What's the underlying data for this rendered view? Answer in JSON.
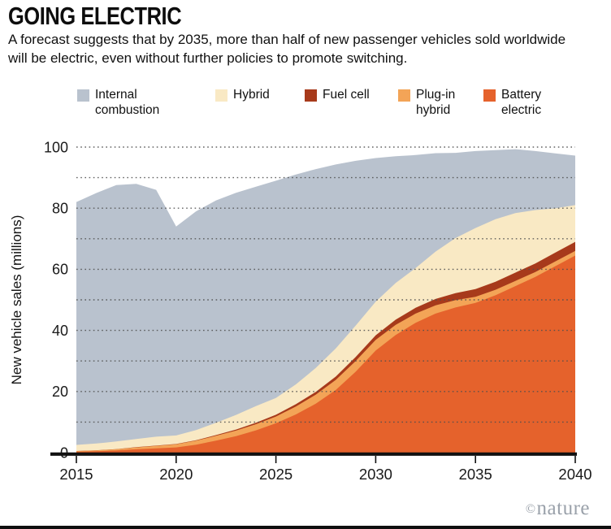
{
  "title": "GOING ELECTRIC",
  "subtitle": "A forecast suggests that by 2035, more than half of new passenger vehicles sold worldwide will be electric, even without further policies to promote switching.",
  "credit": {
    "symbol": "©",
    "name": "nature"
  },
  "legend": [
    {
      "label": "Internal combustion",
      "color": "#b9c2ce"
    },
    {
      "label": "Hybrid",
      "color": "#f9e9c4"
    },
    {
      "label": "Fuel cell",
      "color": "#a73a1b"
    },
    {
      "label": "Plug-in hybrid",
      "color": "#f3a457"
    },
    {
      "label": "Battery electric",
      "color": "#e5622c"
    }
  ],
  "chart_data": {
    "type": "area",
    "stacked": true,
    "title": "GOING ELECTRIC",
    "xlabel": "",
    "ylabel": "New vehicle sales (millions)",
    "x": [
      2015,
      2016,
      2017,
      2018,
      2019,
      2020,
      2021,
      2022,
      2023,
      2024,
      2025,
      2026,
      2027,
      2028,
      2029,
      2030,
      2031,
      2032,
      2033,
      2034,
      2035,
      2036,
      2037,
      2038,
      2039,
      2040
    ],
    "series": [
      {
        "name": "Battery electric",
        "color": "#e5622c",
        "values": [
          0.3,
          0.45,
          0.7,
          1.1,
          1.4,
          1.7,
          2.6,
          3.9,
          5.4,
          7.3,
          9.6,
          12.5,
          16,
          20.5,
          26.5,
          33.4,
          38.5,
          42.5,
          45.5,
          47.5,
          49,
          51.5,
          54.5,
          57.5,
          61,
          64.5
        ]
      },
      {
        "name": "Plug-in hybrid",
        "color": "#f3a457",
        "values": [
          0.2,
          0.3,
          0.4,
          0.6,
          0.8,
          1,
          1.3,
          1.6,
          1.8,
          2,
          2.2,
          2.6,
          3,
          3.3,
          3.5,
          3.5,
          3.3,
          3,
          2.7,
          2.4,
          2,
          1.8,
          1.7,
          1.6,
          1.55,
          1.5
        ]
      },
      {
        "name": "Fuel cell",
        "color": "#a73a1b",
        "values": [
          0.02,
          0.03,
          0.05,
          0.07,
          0.1,
          0.12,
          0.18,
          0.25,
          0.35,
          0.45,
          0.6,
          0.75,
          0.9,
          1.1,
          1.3,
          1.5,
          1.7,
          1.9,
          2.1,
          2.3,
          2.5,
          2.6,
          2.7,
          2.8,
          2.9,
          3
        ]
      },
      {
        "name": "Hybrid",
        "color": "#f9e9c4",
        "values": [
          2,
          2.2,
          2.5,
          2.7,
          2.9,
          2.8,
          3.3,
          4,
          4.8,
          5.5,
          5.5,
          6.5,
          7.8,
          9.2,
          10.3,
          11,
          12,
          13,
          15.5,
          18,
          20,
          20.5,
          19.5,
          17.5,
          14.5,
          12
        ]
      },
      {
        "name": "Internal combustion",
        "color": "#b9c2ce",
        "values": [
          79.5,
          82,
          83.9,
          83.5,
          80.8,
          68.4,
          71.6,
          72.8,
          72.7,
          71.8,
          71.1,
          68.7,
          65.1,
          60.2,
          53.9,
          47,
          41.5,
          37,
          32.2,
          27.9,
          25.2,
          22.6,
          20.9,
          19.3,
          18,
          16.2
        ]
      }
    ],
    "ylim": [
      0,
      100
    ],
    "yticks": [
      0,
      20,
      40,
      60,
      80,
      100
    ],
    "gridlines_every": 10,
    "grid_style": "dotted",
    "xticks": [
      2015,
      2020,
      2025,
      2030,
      2035,
      2040
    ],
    "legend_position": "top"
  }
}
